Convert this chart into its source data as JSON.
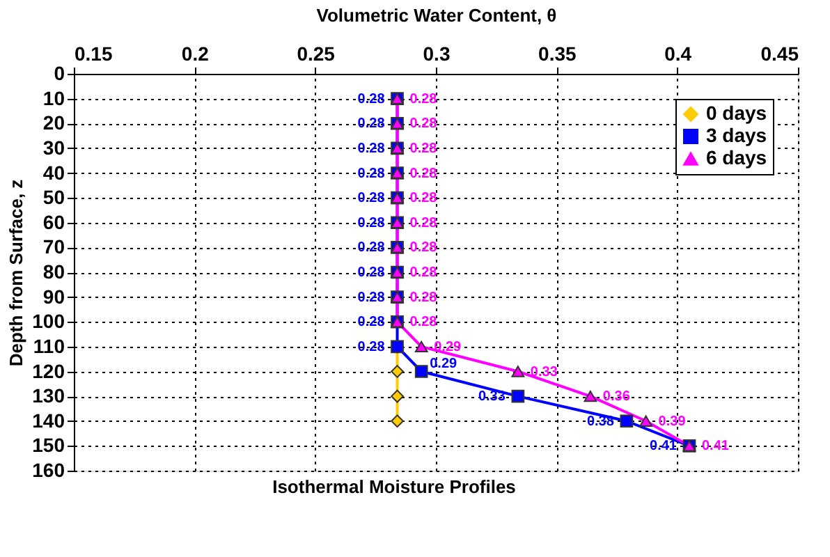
{
  "chart_data": {
    "type": "line",
    "orientation": "horizontal",
    "xlabel": "Volumetric Water Content, θ",
    "ylabel": "Depth from Surface, z",
    "xlim": [
      0.15,
      0.45
    ],
    "xticks": [
      0.15,
      0.2,
      0.25,
      0.3,
      0.35,
      0.4,
      0.45
    ],
    "ylim": [
      160,
      0
    ],
    "yticks": [
      0,
      10,
      20,
      30,
      40,
      50,
      60,
      70,
      80,
      90,
      100,
      110,
      120,
      130,
      140,
      150,
      160
    ],
    "grid": true,
    "legend": "top right",
    "line_style": "solid",
    "annotations": [
      "Isothermal Moisture Profiles"
    ],
    "series": [
      {
        "name": "0 days",
        "color": "#ffcc00",
        "marker": "diamond",
        "x": [
          110,
          120,
          130,
          140
        ],
        "values": [
          0.284,
          0.284,
          0.284,
          0.284
        ]
      },
      {
        "name": "3 days",
        "color": "#0000ff",
        "marker": "square",
        "x": [
          10,
          20,
          30,
          40,
          50,
          60,
          70,
          80,
          90,
          100,
          110,
          120,
          130,
          140,
          150
        ],
        "values": [
          0.284,
          0.284,
          0.284,
          0.284,
          0.284,
          0.284,
          0.284,
          0.284,
          0.284,
          0.284,
          0.284,
          0.294,
          0.334,
          0.379,
          0.405
        ],
        "value_labels": [
          "0.28",
          "0.28",
          "0.28",
          "0.28",
          "0.28",
          "0.28",
          "0.28",
          "0.28",
          "0.28",
          "0.28",
          "0.28",
          "0.29",
          "0.33",
          "0.38",
          "0.41"
        ]
      },
      {
        "name": "6 days",
        "color": "#ff00ff",
        "marker": "triangle",
        "x": [
          10,
          20,
          30,
          40,
          50,
          60,
          70,
          80,
          90,
          100,
          110,
          120,
          130,
          140,
          150
        ],
        "values": [
          0.284,
          0.284,
          0.284,
          0.284,
          0.284,
          0.284,
          0.284,
          0.284,
          0.284,
          0.284,
          0.294,
          0.334,
          0.364,
          0.387,
          0.405
        ],
        "value_labels": [
          "0.28",
          "0.28",
          "0.28",
          "0.28",
          "0.28",
          "0.28",
          "0.28",
          "0.28",
          "0.28",
          "0.28",
          "0.29",
          "0.33",
          "0.36",
          "0.39",
          "0.41"
        ]
      }
    ]
  }
}
